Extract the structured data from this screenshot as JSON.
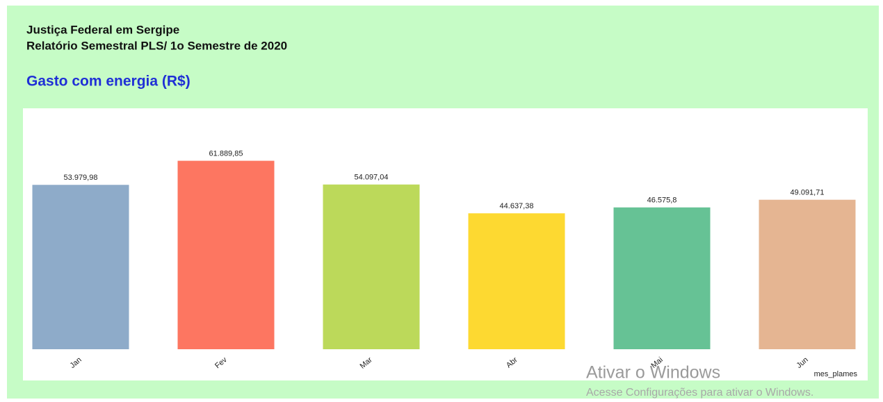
{
  "header": {
    "line1": "Justiça Federal em Sergipe",
    "line2": "Relatório Semestral PLS/ 1o Semestre de 2020"
  },
  "chart_data": {
    "type": "bar",
    "title": "Gasto com energia (R$)",
    "x_label": "mes_plames",
    "categories": [
      "Jan",
      "Fev",
      "Mar",
      "Abr",
      "Mai",
      "Jun"
    ],
    "values": [
      53979.98,
      61889.85,
      54097.04,
      44637.38,
      46575.8,
      49091.71
    ],
    "value_labels": [
      "53.979,98",
      "61.889,85",
      "54.097,04",
      "44.637,38",
      "46.575,8",
      "49.091,71"
    ],
    "colors": [
      "#8eabc9",
      "#fd7661",
      "#bcd95a",
      "#fdd931",
      "#66c295",
      "#e5b592"
    ],
    "ylim": [
      0,
      70000
    ]
  },
  "watermark": {
    "line1": "Ativar o Windows",
    "line2": "Acesse Configurações para ativar o Windows."
  }
}
